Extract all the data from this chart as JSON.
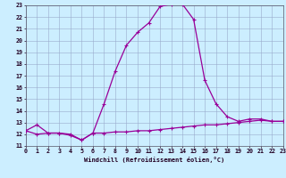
{
  "x": [
    0,
    1,
    2,
    3,
    4,
    5,
    6,
    7,
    8,
    9,
    10,
    11,
    12,
    13,
    14,
    15,
    16,
    17,
    18,
    19,
    20,
    21,
    22,
    23
  ],
  "temp": [
    12.3,
    12.8,
    12.1,
    12.1,
    11.9,
    11.5,
    12.1,
    14.6,
    17.4,
    19.6,
    20.7,
    21.5,
    22.9,
    23.1,
    23.1,
    21.8,
    16.6,
    14.6,
    13.5,
    13.1,
    13.3,
    13.3,
    13.1,
    13.1
  ],
  "windchill": [
    12.3,
    12.0,
    12.1,
    12.1,
    12.0,
    11.5,
    12.1,
    12.1,
    12.2,
    12.2,
    12.3,
    12.3,
    12.4,
    12.5,
    12.6,
    12.7,
    12.8,
    12.8,
    12.9,
    13.0,
    13.1,
    13.2,
    13.1,
    13.1
  ],
  "line_color": "#990099",
  "bg_color": "#cceeff",
  "grid_color": "#99aacc",
  "xlabel": "Windchill (Refroidissement éolien,°C)",
  "ylim": [
    11,
    23
  ],
  "xlim": [
    0,
    23
  ],
  "yticks": [
    11,
    12,
    13,
    14,
    15,
    16,
    17,
    18,
    19,
    20,
    21,
    22,
    23
  ],
  "xticks": [
    0,
    1,
    2,
    3,
    4,
    5,
    6,
    7,
    8,
    9,
    10,
    11,
    12,
    13,
    14,
    15,
    16,
    17,
    18,
    19,
    20,
    21,
    22,
    23
  ],
  "label_fontsize": 5.0,
  "tick_fontsize": 4.8
}
